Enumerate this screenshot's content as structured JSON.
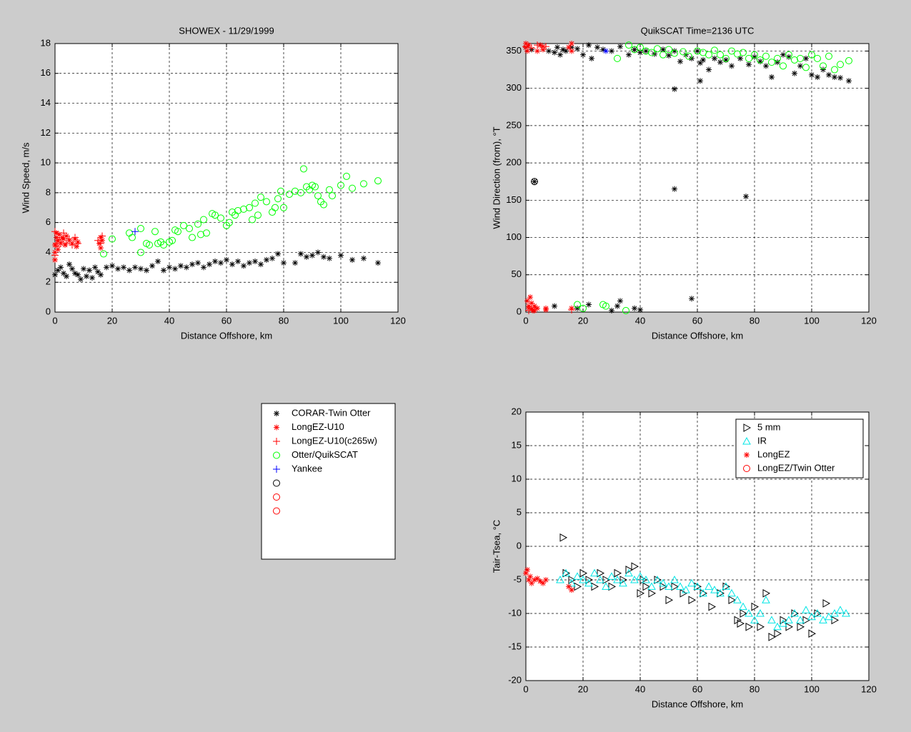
{
  "chart_data": [
    {
      "type": "scatter",
      "title": "SHOWEX - 11/29/1999",
      "x_label": "Distance Offshore, km",
      "y_label": "Wind Speed, m/s",
      "xlim": [
        0,
        120
      ],
      "xticks": [
        0,
        20,
        40,
        60,
        80,
        100,
        120
      ],
      "ylim": [
        0,
        18
      ],
      "yticks": [
        0,
        2,
        4,
        6,
        8,
        10,
        12,
        14,
        16,
        18
      ],
      "grid": true,
      "legend": "outside",
      "series": [
        {
          "name": "CORAR-Twin Otter",
          "color": "#000000",
          "marker": "*",
          "x": [
            0,
            1,
            2,
            3,
            4,
            5,
            6,
            7,
            8,
            9,
            10,
            11,
            12,
            13,
            14,
            15,
            16,
            18,
            20,
            22,
            24,
            26,
            28,
            30,
            32,
            34,
            36,
            38,
            40,
            42,
            44,
            46,
            48,
            50,
            52,
            54,
            56,
            58,
            60,
            62,
            64,
            66,
            68,
            70,
            72,
            74,
            76,
            78,
            80,
            84,
            86,
            88,
            90,
            92,
            94,
            96,
            100,
            104,
            108,
            113
          ],
          "y": [
            2.5,
            2.8,
            3.0,
            2.6,
            2.4,
            3.2,
            2.9,
            2.6,
            2.5,
            2.2,
            2.9,
            2.4,
            2.8,
            2.3,
            3.0,
            2.7,
            2.5,
            3.0,
            3.1,
            2.9,
            3.0,
            2.8,
            3.0,
            2.9,
            2.8,
            3.1,
            3.4,
            2.8,
            3.0,
            2.9,
            3.1,
            3.0,
            3.2,
            3.3,
            3.0,
            3.2,
            3.4,
            3.3,
            3.5,
            3.2,
            3.4,
            3.1,
            3.3,
            3.4,
            3.2,
            3.5,
            3.6,
            3.9,
            3.3,
            3.3,
            3.9,
            3.7,
            3.8,
            4.0,
            3.7,
            3.6,
            3.8,
            3.5,
            3.6,
            3.3
          ]
        },
        {
          "name": "LongEZ-U10",
          "color": "#ff0000",
          "marker": "*",
          "x": [
            0,
            0,
            0,
            0.5,
            0.5,
            1,
            1,
            1.5,
            2,
            2.5,
            3,
            3.5,
            4,
            5,
            6,
            7,
            7.5,
            8,
            15.5,
            16,
            16,
            16.5
          ],
          "y": [
            3.5,
            4.0,
            4.5,
            5.0,
            5.3,
            4.2,
            4.8,
            5.2,
            4.6,
            5.0,
            4.9,
            4.5,
            5.1,
            4.8,
            4.6,
            4.9,
            4.4,
            4.7,
            4.6,
            5.0,
            4.3,
            4.8
          ]
        },
        {
          "name": "LongEZ-U10(c265w)",
          "color": "#ff0000",
          "marker": "+",
          "x": [
            0,
            0,
            0.5,
            1,
            1.5,
            2,
            3,
            4,
            5,
            6,
            7,
            8,
            15,
            16,
            16.5
          ],
          "y": [
            3.8,
            5.4,
            4.6,
            4.4,
            5.0,
            4.7,
            5.3,
            4.6,
            4.9,
            4.5,
            5.0,
            4.6,
            4.8,
            4.6,
            5.1
          ]
        },
        {
          "name": "Otter/QuikSCAT",
          "color": "#00ff00",
          "marker": "o",
          "x": [
            17,
            20,
            26,
            27,
            30,
            30,
            32,
            33,
            35,
            36,
            37,
            38,
            40,
            41,
            42,
            43,
            45,
            47,
            48,
            50,
            51,
            52,
            53,
            55,
            56,
            58,
            60,
            61,
            62,
            63,
            64,
            66,
            68,
            69,
            70,
            71,
            72,
            74,
            76,
            77,
            78,
            79,
            80,
            82,
            84,
            86,
            87,
            88,
            89,
            90,
            91,
            92,
            93,
            94,
            96,
            97,
            100,
            102,
            104,
            108,
            113
          ],
          "y": [
            3.9,
            4.9,
            5.3,
            5.0,
            5.6,
            4.0,
            4.6,
            4.5,
            5.4,
            4.6,
            4.7,
            4.5,
            4.7,
            4.8,
            5.5,
            5.4,
            5.8,
            5.6,
            5.0,
            5.9,
            5.2,
            6.2,
            5.3,
            6.6,
            6.5,
            6.3,
            5.8,
            6.0,
            6.7,
            6.5,
            6.8,
            6.9,
            7.0,
            6.2,
            7.3,
            6.5,
            7.7,
            7.4,
            6.7,
            7.0,
            7.6,
            8.1,
            7.0,
            7.9,
            8.1,
            8.0,
            9.6,
            8.4,
            8.2,
            8.5,
            8.4,
            7.8,
            7.4,
            7.2,
            8.2,
            7.8,
            8.5,
            9.1,
            8.3,
            8.6,
            8.8
          ]
        },
        {
          "name": "Yankee",
          "color": "#0000ff",
          "marker": "+",
          "x": [
            28
          ],
          "y": [
            5.4
          ]
        }
      ],
      "legend_extra": [
        {
          "name": null,
          "color": "#000000",
          "marker": "o"
        },
        {
          "name": null,
          "color": "#ff0000",
          "marker": "o"
        },
        {
          "name": null,
          "color": "#ff0000",
          "marker": "o"
        }
      ]
    },
    {
      "type": "scatter",
      "title": "QuikSCAT Time=2136 UTC",
      "x_label": "Distance Offshore, km",
      "y_label": "Wind Direction (from), °T",
      "xlim": [
        0,
        120
      ],
      "xticks": [
        0,
        20,
        40,
        60,
        80,
        100,
        120
      ],
      "ylim": [
        0,
        360
      ],
      "yticks": [
        0,
        50,
        100,
        150,
        200,
        250,
        300,
        350
      ],
      "grid": true,
      "series": [
        {
          "color": "#000000",
          "marker": "*",
          "x": [
            0,
            2,
            5,
            8,
            10,
            11,
            12,
            13,
            14,
            16,
            18,
            20,
            22,
            23,
            25,
            27,
            30,
            33,
            36,
            38,
            40,
            42,
            45,
            48,
            50,
            52,
            54,
            56,
            58,
            60,
            61,
            62,
            64,
            66,
            68,
            70,
            72,
            75,
            78,
            80,
            82,
            84,
            86,
            88,
            90,
            92,
            94,
            96,
            98,
            100,
            102,
            104,
            106,
            108,
            110,
            113,
            52,
            52,
            77,
            58,
            61,
            10,
            18,
            22,
            30,
            32,
            33,
            38,
            40,
            3
          ],
          "y": [
            355,
            352,
            358,
            350,
            348,
            355,
            345,
            352,
            350,
            355,
            353,
            345,
            358,
            340,
            355,
            352,
            350,
            356,
            345,
            352,
            348,
            350,
            346,
            352,
            344,
            350,
            336,
            345,
            340,
            350,
            334,
            338,
            325,
            340,
            335,
            338,
            330,
            340,
            332,
            342,
            336,
            330,
            315,
            335,
            345,
            342,
            320,
            330,
            340,
            318,
            315,
            325,
            318,
            315,
            314,
            310,
            299,
            165,
            155,
            18,
            310,
            8,
            5,
            10,
            2,
            8,
            15,
            5,
            3,
            175
          ]
        },
        {
          "color": "#ff0000",
          "marker": "*",
          "x": [
            0,
            0,
            0.5,
            1,
            1,
            1.5,
            2,
            2.5,
            3,
            4,
            5,
            6,
            7,
            15,
            16,
            16,
            0.5,
            1,
            2,
            3,
            4,
            6,
            7,
            16
          ],
          "y": [
            355,
            360,
            350,
            358,
            5,
            20,
            12,
            2,
            8,
            5,
            358,
            352,
            3,
            355,
            5,
            350,
            15,
            8,
            4,
            2,
            350,
            356,
            5,
            360
          ]
        },
        {
          "color": "#ff0000",
          "marker": "+",
          "x": [
            0,
            1,
            2,
            3,
            4,
            7,
            16
          ],
          "y": [
            356,
            2,
            354,
            6,
            358,
            356,
            3
          ]
        },
        {
          "color": "#00ff00",
          "marker": "o",
          "x": [
            18,
            20,
            27,
            28,
            35,
            32,
            36,
            38,
            40,
            42,
            44,
            46,
            48,
            50,
            52,
            55,
            57,
            60,
            62,
            64,
            66,
            68,
            70,
            72,
            74,
            76,
            78,
            80,
            82,
            84,
            86,
            88,
            90,
            92,
            94,
            96,
            98,
            100,
            102,
            104,
            106,
            108,
            110,
            113
          ],
          "y": [
            10,
            5,
            10,
            8,
            2,
            340,
            358,
            352,
            355,
            350,
            348,
            353,
            345,
            352,
            347,
            349,
            343,
            350,
            348,
            345,
            351,
            345,
            340,
            350,
            346,
            348,
            340,
            345,
            338,
            343,
            335,
            340,
            330,
            345,
            338,
            340,
            328,
            345,
            340,
            330,
            343,
            325,
            332,
            337
          ]
        },
        {
          "color": "#0000ff",
          "marker": "*",
          "x": [
            28
          ],
          "y": [
            350
          ]
        },
        {
          "color": "#000000",
          "marker": "o",
          "x": [
            3
          ],
          "y": [
            175
          ]
        }
      ]
    },
    {
      "type": "scatter",
      "x_label": "Distance Offshore, km",
      "y_label": "Tair-Tsea, °C",
      "xlim": [
        0,
        120
      ],
      "xticks": [
        0,
        20,
        40,
        60,
        80,
        100,
        120
      ],
      "ylim": [
        -20,
        20
      ],
      "yticks": [
        -20,
        -15,
        -10,
        -5,
        0,
        5,
        10,
        15,
        20
      ],
      "grid": true,
      "legend": "northeast",
      "series": [
        {
          "name": "5 mm",
          "color": "#000000",
          "marker": ">",
          "x": [
            13,
            14,
            16,
            18,
            20,
            22,
            24,
            26,
            28,
            30,
            32,
            34,
            36,
            38,
            40,
            41,
            42,
            44,
            46,
            48,
            50,
            52,
            55,
            58,
            60,
            62,
            65,
            68,
            70,
            72,
            74,
            75,
            76,
            78,
            80,
            82,
            84,
            86,
            88,
            90,
            92,
            94,
            96,
            98,
            100,
            102,
            105,
            108
          ],
          "y": [
            1.3,
            -4,
            -5,
            -6,
            -4,
            -5,
            -6,
            -4,
            -5,
            -6,
            -4,
            -5,
            -3.5,
            -3,
            -7,
            -5,
            -6,
            -7,
            -5,
            -6,
            -8,
            -6,
            -7,
            -8,
            -6,
            -7,
            -9,
            -7,
            -6,
            -8,
            -11,
            -11.5,
            -10,
            -12,
            -9,
            -12,
            -7,
            -13.5,
            -13,
            -11,
            -12,
            -10,
            -12,
            -11,
            -13,
            -10,
            -8.5,
            -11
          ]
        },
        {
          "name": "IR",
          "color": "#00e5e5",
          "marker": "^",
          "x": [
            12,
            14,
            16,
            18,
            20,
            22,
            24,
            26,
            28,
            30,
            32,
            34,
            36,
            38,
            40,
            42,
            44,
            46,
            48,
            50,
            52,
            54,
            56,
            58,
            60,
            62,
            64,
            66,
            68,
            70,
            72,
            74,
            76,
            78,
            80,
            82,
            84,
            86,
            88,
            90,
            92,
            94,
            96,
            98,
            100,
            102,
            104,
            106,
            108,
            110,
            112
          ],
          "y": [
            -5,
            -4,
            -5.5,
            -4.5,
            -5,
            -5.5,
            -4,
            -5,
            -6,
            -4.5,
            -5,
            -5.5,
            -4,
            -5,
            -4.5,
            -5,
            -6,
            -5,
            -5.5,
            -6,
            -5,
            -6,
            -6.5,
            -5.5,
            -6,
            -7,
            -6,
            -6.5,
            -7,
            -6,
            -7,
            -8,
            -9,
            -10,
            -11,
            -10,
            -8,
            -11,
            -12,
            -11.5,
            -11,
            -10,
            -11,
            -9.5,
            -10.5,
            -10,
            -11,
            -10.5,
            -10,
            -9.5,
            -10
          ]
        },
        {
          "name": "LongEZ",
          "color": "#ff0000",
          "marker": "*",
          "x": [
            0,
            0.5,
            1,
            1.5,
            2,
            3,
            4,
            5,
            6,
            7,
            15,
            16
          ],
          "y": [
            -4,
            -3.5,
            -5,
            -4.5,
            -5.5,
            -5,
            -4.8,
            -5.2,
            -5.5,
            -5,
            -6,
            -6.5
          ]
        },
        {
          "name": "LongEZ/Twin Otter",
          "color": "#ff0000",
          "marker": "o",
          "x": [],
          "y": []
        }
      ]
    }
  ]
}
